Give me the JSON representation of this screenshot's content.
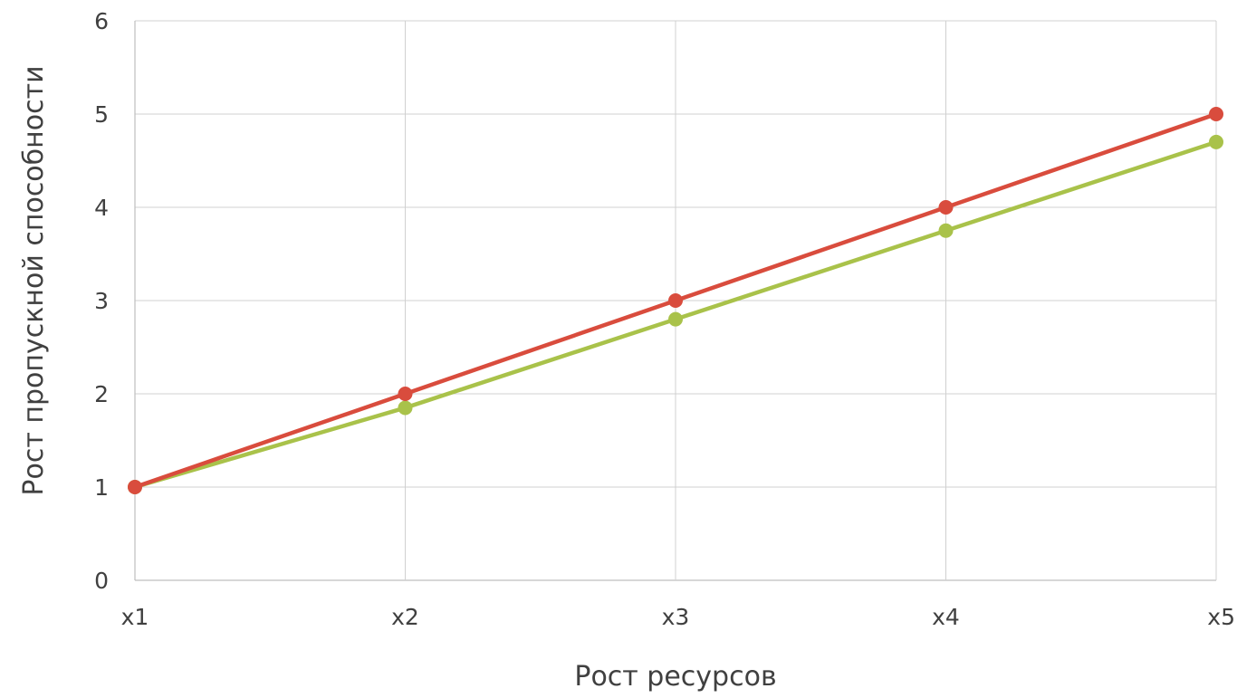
{
  "chart_data": {
    "type": "line",
    "title": "",
    "xlabel": "Рост ресурсов",
    "ylabel": "Рост пропускной способности",
    "categories": [
      "x1",
      "x2",
      "x3",
      "x4",
      "x5"
    ],
    "ylim": [
      0,
      6
    ],
    "yticks": [
      "0",
      "1",
      "2",
      "3",
      "4",
      "5",
      "6"
    ],
    "grid": true,
    "legend": "none",
    "series": [
      {
        "values": [
          1,
          2,
          3,
          4,
          5
        ],
        "color": "#d94c3d"
      },
      {
        "values": [
          1,
          1.85,
          2.8,
          3.75,
          4.7
        ],
        "color": "#a9c24a"
      }
    ]
  }
}
